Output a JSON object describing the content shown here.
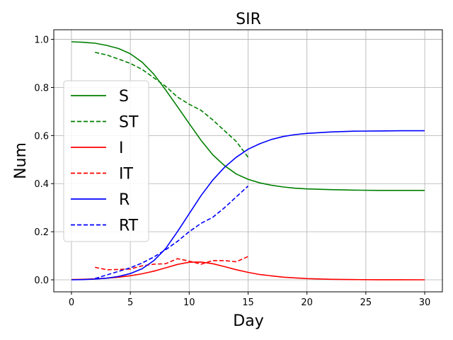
{
  "chart_data": {
    "type": "line",
    "title": "SIR",
    "xlabel": "Day",
    "ylabel": "Num",
    "xlim": [
      -1.5,
      31.5
    ],
    "ylim": [
      -0.05,
      1.04
    ],
    "xticks": [
      0,
      5,
      10,
      15,
      20,
      25,
      30
    ],
    "yticks": [
      0.0,
      0.2,
      0.4,
      0.6,
      0.8,
      1.0
    ],
    "xtick_labels": [
      "0",
      "5",
      "10",
      "15",
      "20",
      "25",
      "30"
    ],
    "ytick_labels": [
      "0.0",
      "0.2",
      "0.4",
      "0.6",
      "0.8",
      "1.0"
    ],
    "grid": true,
    "legend_position": "center-left",
    "series": [
      {
        "name": "S",
        "color": "#008000",
        "dash": "solid",
        "x": [
          0,
          1,
          2,
          3,
          4,
          5,
          6,
          7,
          8,
          9,
          10,
          11,
          12,
          13,
          14,
          15,
          16,
          17,
          18,
          19,
          20,
          22,
          24,
          26,
          28,
          30
        ],
        "y": [
          0.99,
          0.988,
          0.984,
          0.975,
          0.962,
          0.94,
          0.905,
          0.855,
          0.79,
          0.72,
          0.65,
          0.58,
          0.52,
          0.475,
          0.44,
          0.418,
          0.403,
          0.393,
          0.386,
          0.381,
          0.378,
          0.375,
          0.373,
          0.372,
          0.372,
          0.372
        ]
      },
      {
        "name": "ST",
        "color": "#008000",
        "dash": "dashed",
        "x": [
          2,
          3,
          4,
          5,
          6,
          7,
          8,
          9,
          10,
          11,
          12,
          13,
          14,
          15
        ],
        "y": [
          0.946,
          0.935,
          0.918,
          0.9,
          0.875,
          0.84,
          0.805,
          0.76,
          0.73,
          0.705,
          0.665,
          0.62,
          0.575,
          0.51
        ]
      },
      {
        "name": "I",
        "color": "#ff0000",
        "dash": "solid",
        "x": [
          0,
          1,
          2,
          3,
          4,
          5,
          6,
          7,
          8,
          9,
          10,
          11,
          12,
          13,
          14,
          15,
          16,
          18,
          20,
          22,
          24,
          26,
          28,
          30
        ],
        "y": [
          0.001,
          0.002,
          0.004,
          0.007,
          0.011,
          0.017,
          0.025,
          0.036,
          0.05,
          0.064,
          0.073,
          0.074,
          0.067,
          0.055,
          0.042,
          0.031,
          0.022,
          0.011,
          0.005,
          0.002,
          0.001,
          0.0005,
          0.0003,
          0.0002
        ]
      },
      {
        "name": "IT",
        "color": "#ff0000",
        "dash": "dashed",
        "x": [
          2,
          3,
          4,
          5,
          6,
          7,
          8,
          9,
          10,
          11,
          12,
          13,
          14,
          15
        ],
        "y": [
          0.052,
          0.042,
          0.043,
          0.045,
          0.058,
          0.065,
          0.067,
          0.088,
          0.078,
          0.065,
          0.08,
          0.08,
          0.075,
          0.097
        ]
      },
      {
        "name": "R",
        "color": "#0000ff",
        "dash": "solid",
        "x": [
          0,
          1,
          2,
          3,
          4,
          5,
          6,
          7,
          8,
          9,
          10,
          11,
          12,
          13,
          14,
          15,
          16,
          17,
          18,
          19,
          20,
          22,
          24,
          26,
          28,
          30
        ],
        "y": [
          0.0,
          0.001,
          0.003,
          0.007,
          0.014,
          0.026,
          0.046,
          0.08,
          0.13,
          0.2,
          0.275,
          0.35,
          0.415,
          0.468,
          0.51,
          0.543,
          0.566,
          0.584,
          0.596,
          0.604,
          0.609,
          0.615,
          0.618,
          0.619,
          0.62,
          0.62
        ]
      },
      {
        "name": "RT",
        "color": "#0000ff",
        "dash": "dashed",
        "x": [
          2,
          3,
          4,
          5,
          6,
          7,
          8,
          9,
          10,
          11,
          12,
          13,
          14,
          15
        ],
        "y": [
          0.005,
          0.02,
          0.035,
          0.05,
          0.07,
          0.095,
          0.125,
          0.16,
          0.2,
          0.235,
          0.26,
          0.3,
          0.345,
          0.39
        ]
      }
    ]
  }
}
